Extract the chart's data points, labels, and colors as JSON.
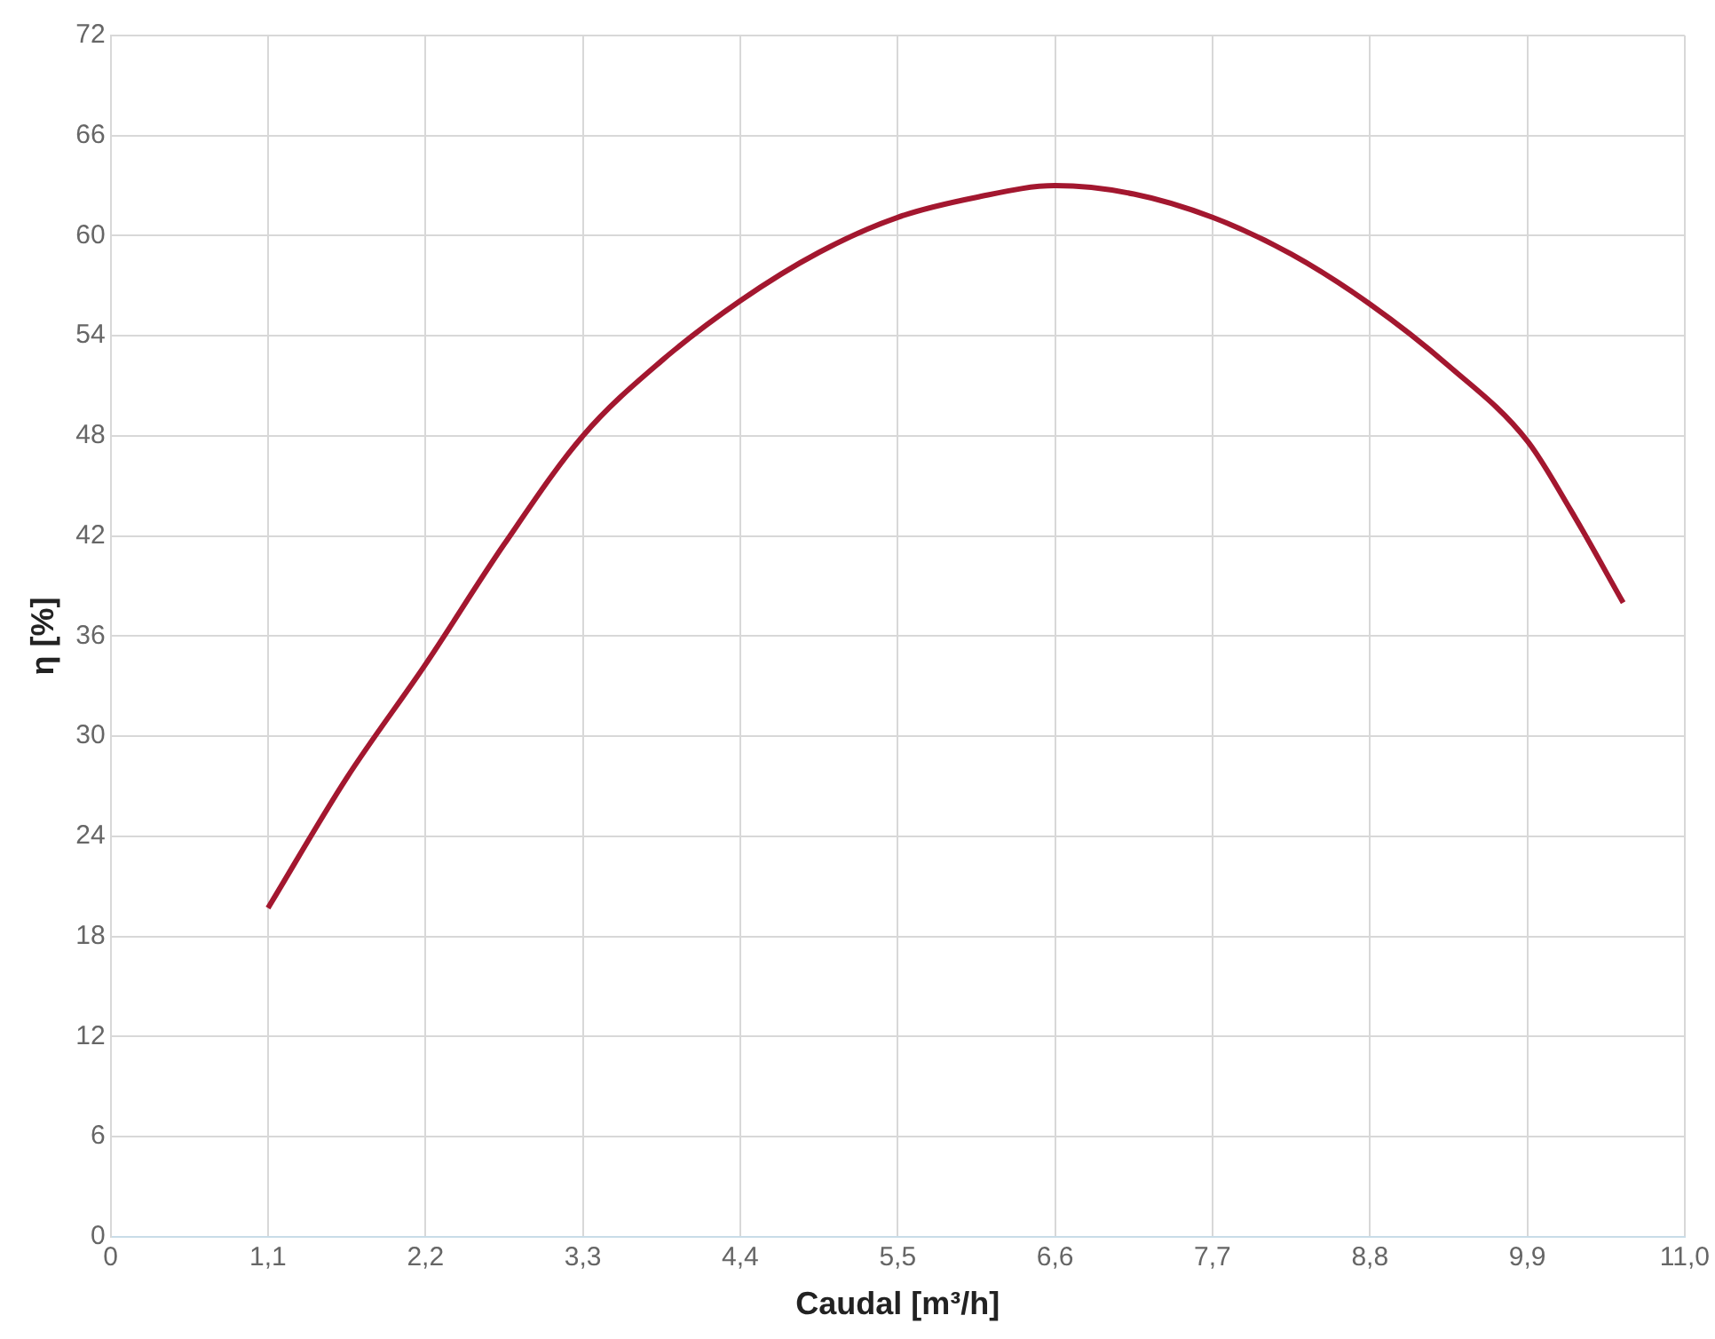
{
  "chart_data": {
    "type": "line",
    "xlabel": "Caudal [m³/h]",
    "ylabel": "η [%]",
    "series": [
      {
        "color": "#a3172f",
        "x": [
          1.1,
          1.65,
          2.2,
          2.75,
          3.3,
          3.85,
          4.4,
          4.95,
          5.5,
          6.05,
          6.6,
          7.15,
          7.7,
          8.25,
          8.8,
          9.35,
          9.9,
          10.2,
          10.57
        ],
        "values": [
          19.7,
          27.5,
          34.3,
          41.5,
          48.0,
          52.5,
          56.1,
          59.0,
          61.1,
          62.3,
          63.0,
          62.5,
          61.1,
          58.9,
          55.9,
          52.2,
          47.7,
          43.6,
          38.0
        ]
      }
    ],
    "xlim": [
      0,
      11
    ],
    "xticks": [
      0,
      {
        "value": 1.1,
        "label": "1,1"
      },
      {
        "value": 2.2,
        "label": "2,2"
      },
      {
        "value": 3.3,
        "label": "3,3"
      },
      {
        "value": 4.4,
        "label": "4,4"
      },
      {
        "value": 5.5,
        "label": "5,5"
      },
      {
        "value": 6.6,
        "label": "6,6"
      },
      {
        "value": 7.7,
        "label": "7,7"
      },
      {
        "value": 8.8,
        "label": "8,8"
      },
      {
        "value": 9.9,
        "label": "9,9"
      },
      {
        "value": 11,
        "label": "11,0"
      }
    ],
    "ylim": [
      0,
      72
    ],
    "yticks": [
      0,
      6,
      12,
      18,
      24,
      30,
      36,
      42,
      48,
      54,
      60,
      66,
      72
    ],
    "grid": true,
    "marker": "none",
    "line_style": "solid",
    "legend": false
  }
}
